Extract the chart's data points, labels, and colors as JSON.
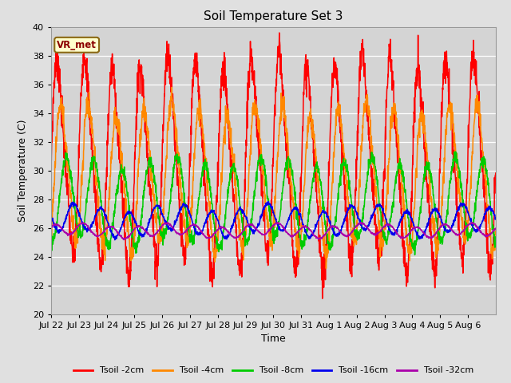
{
  "title": "Soil Temperature Set 3",
  "xlabel": "Time",
  "ylabel": "Soil Temperature (C)",
  "ylim": [
    20,
    40
  ],
  "n_days": 16,
  "fig_bg": "#e0e0e0",
  "plot_bg": "#d4d4d4",
  "annotation_text": "VR_met",
  "annotation_bg": "#ffffcc",
  "annotation_border": "#8B6914",
  "series": [
    {
      "label": "Tsoil -2cm",
      "color": "#ff0000",
      "mean": 30.5,
      "amp1": 8.0,
      "amp2": 0.6,
      "phase1": 0.0,
      "phase2": 0.0,
      "skew": 0.5,
      "trend": 0.0
    },
    {
      "label": "Tsoil -4cm",
      "color": "#ff8800",
      "mean": 29.5,
      "amp1": 5.2,
      "amp2": 0.5,
      "phase1": 0.12,
      "phase2": 0.0,
      "skew": 0.3,
      "trend": 0.0
    },
    {
      "label": "Tsoil -8cm",
      "color": "#00cc00",
      "mean": 27.8,
      "amp1": 2.8,
      "amp2": 0.4,
      "phase1": 0.3,
      "phase2": 0.0,
      "skew": 0.0,
      "trend": 0.0
    },
    {
      "label": "Tsoil -16cm",
      "color": "#0000ee",
      "mean": 26.5,
      "amp1": 0.9,
      "amp2": 0.3,
      "phase1": 0.55,
      "phase2": 0.0,
      "skew": 0.0,
      "trend": 0.0
    },
    {
      "label": "Tsoil -32cm",
      "color": "#aa00aa",
      "mean": 25.8,
      "amp1": 0.4,
      "amp2": 0.15,
      "phase1": 0.9,
      "phase2": 0.0,
      "skew": 0.0,
      "trend": 0.0
    }
  ],
  "tick_labels": [
    "Jul 22",
    "Jul 23",
    "Jul 24",
    "Jul 25",
    "Jul 26",
    "Jul 27",
    "Jul 28",
    "Jul 29",
    "Jul 30",
    "Jul 31",
    "Aug 1",
    "Aug 2",
    "Aug 3",
    "Aug 4",
    "Aug 5",
    "Aug 6"
  ],
  "tick_positions": [
    0,
    1,
    2,
    3,
    4,
    5,
    6,
    7,
    8,
    9,
    10,
    11,
    12,
    13,
    14,
    15
  ]
}
